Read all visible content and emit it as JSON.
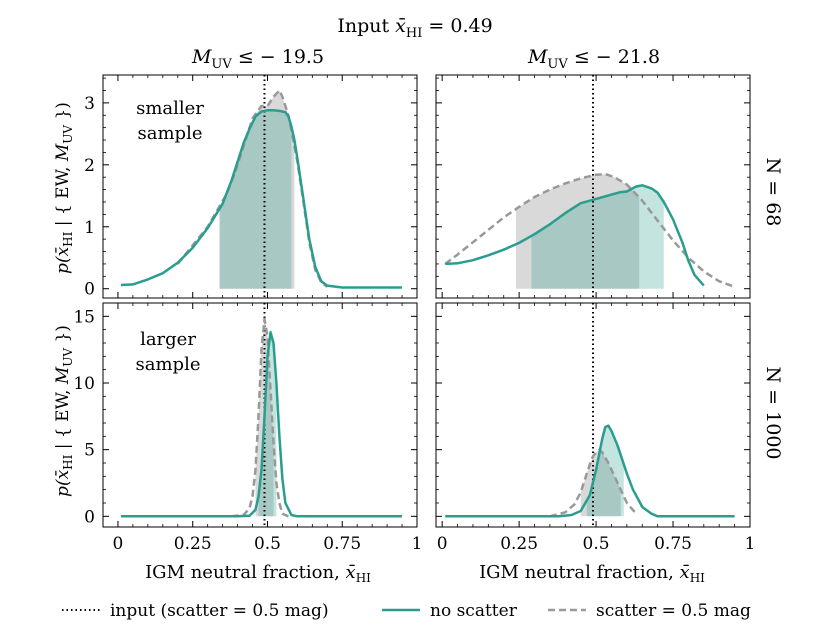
{
  "figure": {
    "title_prefix": "Input",
    "title_symbol": "x̄",
    "title_sub": "HI",
    "title_value": "= 0.49"
  },
  "columns": [
    {
      "title_m": "M",
      "title_sub": "UV",
      "title_rest": "≤ − 19.5"
    },
    {
      "title_m": "M",
      "title_sub": "UV",
      "title_rest": "≤ − 21.8"
    }
  ],
  "rows": [
    {
      "label": "N = 68"
    },
    {
      "label": "N = 1000"
    }
  ],
  "ylabel": {
    "p": "p(",
    "x": "x̄",
    "sub": "HI",
    "mid": " | { EW, ",
    "m": "M",
    "msub": "UV",
    "end": " })"
  },
  "xlabel": {
    "text": "IGM neutral fraction, ",
    "x": "x̄",
    "sub": "HI"
  },
  "annotations": [
    {
      "panel": 0,
      "lines": [
        "smaller",
        "sample"
      ]
    },
    {
      "panel": 2,
      "lines": [
        "larger",
        "sample"
      ]
    }
  ],
  "legend": [
    {
      "key": "input",
      "label": "input (scatter = 0.5 mag)"
    },
    {
      "key": "noscatter",
      "label": "no scatter"
    },
    {
      "key": "scatter",
      "label": "scatter = 0.5 mag"
    }
  ],
  "colors": {
    "teal": "#2a9d8f",
    "grey": "#999999",
    "teal_fill": "#2a9d8f",
    "grey_fill": "#aaaaaa"
  },
  "chart_data": [
    {
      "type": "line",
      "panel": "top-left",
      "xlim": [
        -0.05,
        1.0
      ],
      "ylim": [
        -0.15,
        3.45
      ],
      "xticks": [
        0,
        0.25,
        0.5,
        0.75,
        1
      ],
      "xticklabels": [
        "0",
        "0.25",
        "0.5",
        "0.75",
        "1"
      ],
      "yticks": [
        0,
        1,
        2,
        3
      ],
      "yticklabels": [
        "0",
        "1",
        "2",
        "3"
      ],
      "input_x": 0.49,
      "series": [
        {
          "name": "no scatter",
          "x": [
            0.01,
            0.05,
            0.1,
            0.15,
            0.2,
            0.25,
            0.3,
            0.35,
            0.38,
            0.4,
            0.42,
            0.44,
            0.46,
            0.48,
            0.5,
            0.52,
            0.54,
            0.56,
            0.57,
            0.58,
            0.59,
            0.6,
            0.62,
            0.64,
            0.66,
            0.68,
            0.7,
            0.75,
            0.8,
            0.85,
            0.9,
            0.95
          ],
          "y": [
            0.06,
            0.07,
            0.15,
            0.25,
            0.42,
            0.66,
            0.98,
            1.37,
            1.75,
            2.05,
            2.35,
            2.58,
            2.78,
            2.86,
            2.88,
            2.88,
            2.87,
            2.85,
            2.78,
            2.62,
            2.4,
            2.1,
            1.45,
            0.8,
            0.35,
            0.12,
            0.05,
            0.02,
            0.02,
            0.02,
            0.02,
            0.02
          ],
          "interval": [
            0.34,
            0.58
          ]
        },
        {
          "name": "scatter = 0.5 mag",
          "x": [
            0.2,
            0.25,
            0.3,
            0.33,
            0.36,
            0.39,
            0.42,
            0.45,
            0.48,
            0.5,
            0.52,
            0.54,
            0.55,
            0.56,
            0.57,
            0.58,
            0.6,
            0.62,
            0.64,
            0.66,
            0.68,
            0.7
          ],
          "y": [
            0.4,
            0.7,
            1.0,
            1.25,
            1.5,
            1.85,
            2.3,
            2.75,
            2.95,
            2.95,
            3.1,
            3.2,
            3.1,
            2.95,
            2.8,
            2.55,
            2.05,
            1.4,
            0.75,
            0.3,
            0.1,
            0.03
          ],
          "interval": [
            0.34,
            0.59
          ]
        }
      ]
    },
    {
      "type": "line",
      "panel": "top-right",
      "xlim": [
        -0.02,
        1.0
      ],
      "ylim": [
        -0.15,
        3.45
      ],
      "xticks": [
        0,
        0.25,
        0.5,
        0.75,
        1
      ],
      "xticklabels": [
        "0",
        "0.25",
        "0.5",
        "0.75",
        "1"
      ],
      "yticks": [
        0,
        1,
        2,
        3
      ],
      "yticklabels": [
        "",
        "",
        "",
        ""
      ],
      "input_x": 0.49,
      "series": [
        {
          "name": "no scatter",
          "x": [
            0.01,
            0.05,
            0.1,
            0.15,
            0.2,
            0.25,
            0.3,
            0.35,
            0.4,
            0.45,
            0.5,
            0.55,
            0.58,
            0.6,
            0.63,
            0.65,
            0.68,
            0.7,
            0.72,
            0.75,
            0.78,
            0.8,
            0.82,
            0.85
          ],
          "y": [
            0.4,
            0.41,
            0.46,
            0.54,
            0.63,
            0.74,
            0.88,
            1.04,
            1.22,
            1.38,
            1.45,
            1.52,
            1.56,
            1.57,
            1.65,
            1.67,
            1.62,
            1.55,
            1.4,
            1.12,
            0.75,
            0.45,
            0.22,
            0.05
          ],
          "interval": [
            0.29,
            0.72
          ]
        },
        {
          "name": "scatter = 0.5 mag",
          "x": [
            0.01,
            0.05,
            0.1,
            0.15,
            0.2,
            0.25,
            0.3,
            0.35,
            0.4,
            0.45,
            0.5,
            0.53,
            0.56,
            0.6,
            0.65,
            0.7,
            0.75,
            0.8,
            0.85,
            0.9,
            0.95
          ],
          "y": [
            0.4,
            0.55,
            0.75,
            0.95,
            1.15,
            1.32,
            1.48,
            1.6,
            1.7,
            1.78,
            1.84,
            1.85,
            1.8,
            1.68,
            1.42,
            1.1,
            0.78,
            0.5,
            0.28,
            0.12,
            0.03
          ],
          "interval": [
            0.24,
            0.64
          ]
        }
      ]
    },
    {
      "type": "line",
      "panel": "bottom-left",
      "xlim": [
        -0.05,
        1.0
      ],
      "ylim": [
        -0.8,
        16.0
      ],
      "xticks": [
        0,
        0.25,
        0.5,
        0.75,
        1
      ],
      "xticklabels": [
        "0",
        "0.25",
        "0.5",
        "0.75",
        "1"
      ],
      "yticks": [
        0,
        5,
        10,
        15
      ],
      "yticklabels": [
        "0",
        "5",
        "10",
        "15"
      ],
      "input_x": 0.49,
      "series": [
        {
          "name": "no scatter",
          "x": [
            0.01,
            0.4,
            0.44,
            0.46,
            0.47,
            0.48,
            0.49,
            0.5,
            0.51,
            0.52,
            0.53,
            0.54,
            0.55,
            0.56,
            0.58,
            0.6,
            0.95
          ],
          "y": [
            0.0,
            0.0,
            0.05,
            0.5,
            1.5,
            3.5,
            7.5,
            12.0,
            13.8,
            13.0,
            10.0,
            6.0,
            2.8,
            1.0,
            0.1,
            0.0,
            0.0
          ],
          "interval": [
            0.47,
            0.53
          ]
        },
        {
          "name": "scatter = 0.5 mag",
          "x": [
            0.38,
            0.42,
            0.44,
            0.45,
            0.46,
            0.47,
            0.48,
            0.49,
            0.5,
            0.51,
            0.52,
            0.53,
            0.54,
            0.55,
            0.57
          ],
          "y": [
            0.0,
            0.1,
            0.6,
            1.5,
            3.5,
            7.5,
            12.5,
            14.8,
            13.5,
            9.5,
            5.5,
            2.5,
            1.0,
            0.2,
            0.0
          ],
          "interval": [
            0.46,
            0.52
          ]
        }
      ]
    },
    {
      "type": "line",
      "panel": "bottom-right",
      "xlim": [
        -0.02,
        1.0
      ],
      "ylim": [
        -0.8,
        16.0
      ],
      "xticks": [
        0,
        0.25,
        0.5,
        0.75,
        1
      ],
      "xticklabels": [
        "0",
        "0.25",
        "0.5",
        "0.75",
        "1"
      ],
      "yticks": [
        0,
        5,
        10,
        15
      ],
      "yticklabels": [
        "",
        "",
        "",
        ""
      ],
      "input_x": 0.49,
      "series": [
        {
          "name": "no scatter",
          "x": [
            0.01,
            0.38,
            0.42,
            0.45,
            0.48,
            0.5,
            0.52,
            0.53,
            0.54,
            0.55,
            0.57,
            0.6,
            0.62,
            0.65,
            0.68,
            0.7,
            0.95
          ],
          "y": [
            0.0,
            0.0,
            0.1,
            0.4,
            1.6,
            3.5,
            5.8,
            6.7,
            6.8,
            6.4,
            5.3,
            3.2,
            2.0,
            0.7,
            0.2,
            0.0,
            0.0
          ],
          "interval": [
            0.47,
            0.59
          ]
        },
        {
          "name": "scatter = 0.5 mag",
          "x": [
            0.35,
            0.4,
            0.43,
            0.45,
            0.47,
            0.48,
            0.49,
            0.5,
            0.51,
            0.52,
            0.54,
            0.56,
            0.58,
            0.6,
            0.63
          ],
          "y": [
            0.0,
            0.3,
            0.9,
            1.8,
            3.2,
            3.9,
            4.5,
            4.8,
            5.0,
            4.8,
            4.0,
            3.0,
            2.0,
            1.0,
            0.2
          ],
          "interval": [
            0.45,
            0.58
          ]
        }
      ]
    }
  ]
}
